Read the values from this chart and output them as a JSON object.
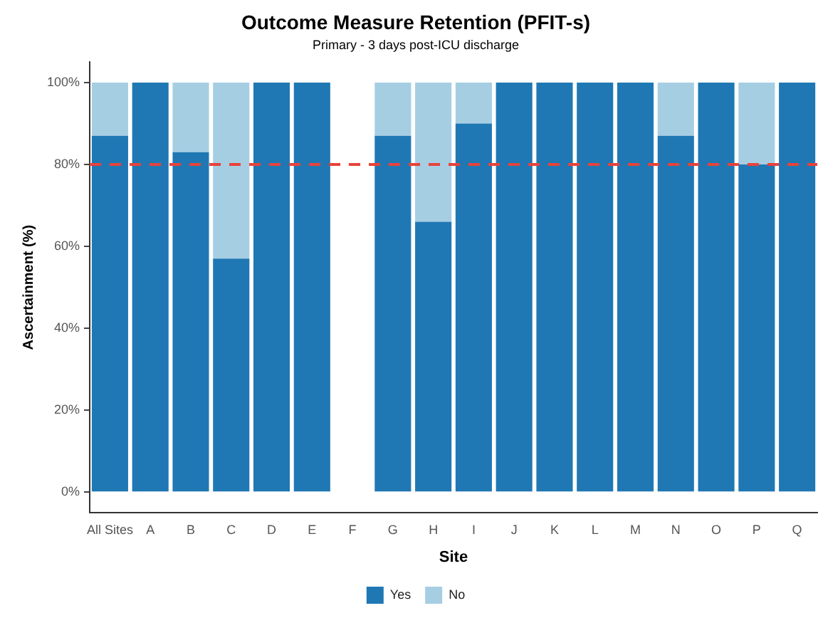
{
  "chart_data": {
    "type": "bar",
    "title": "Outcome Measure Retention (PFIT-s)",
    "subtitle": "Primary - 3 days post-ICU discharge",
    "xlabel": "Site",
    "ylabel": "Ascertainment (%)",
    "categories": [
      "All Sites",
      "A",
      "B",
      "C",
      "D",
      "E",
      "F",
      "G",
      "H",
      "I",
      "J",
      "K",
      "L",
      "M",
      "N",
      "O",
      "P",
      "Q"
    ],
    "stacked": true,
    "series": [
      {
        "name": "Yes",
        "color": "#1f78b4",
        "values": [
          87,
          100,
          83,
          57,
          100,
          100,
          null,
          87,
          66,
          90,
          100,
          100,
          100,
          100,
          87,
          100,
          80,
          100
        ]
      },
      {
        "name": "No",
        "color": "#a6cee3",
        "values": [
          13,
          0,
          17,
          43,
          0,
          0,
          null,
          13,
          34,
          10,
          0,
          0,
          0,
          0,
          13,
          0,
          20,
          0
        ]
      }
    ],
    "ylim": [
      -5,
      105
    ],
    "yticks": [
      {
        "value": 0,
        "label": "0%"
      },
      {
        "value": 20,
        "label": "20%"
      },
      {
        "value": 40,
        "label": "40%"
      },
      {
        "value": 60,
        "label": "60%"
      },
      {
        "value": 80,
        "label": "80%"
      },
      {
        "value": 100,
        "label": "100%"
      }
    ],
    "ref_lines": [
      {
        "axis": "y",
        "value": 80,
        "color": "#e8423b",
        "line_style": "dashed"
      }
    ],
    "grid": false,
    "legend": "bottom"
  }
}
